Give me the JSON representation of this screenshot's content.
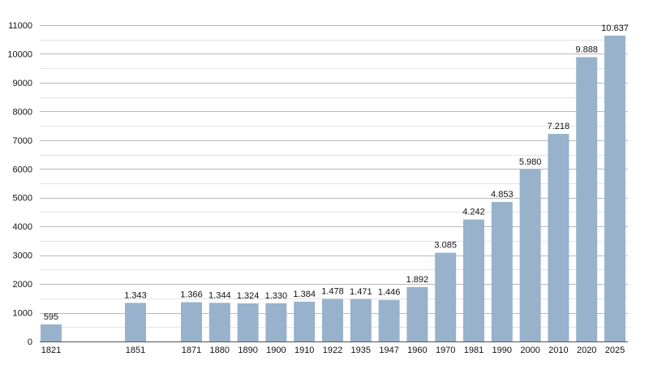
{
  "chart_data": {
    "type": "bar",
    "title": "",
    "xlabel": "",
    "ylabel": "",
    "ylim": [
      0,
      11000
    ],
    "yticks": [
      0,
      1000,
      2000,
      3000,
      4000,
      5000,
      6000,
      7000,
      8000,
      9000,
      10000,
      11000
    ],
    "grid": true,
    "legend": "none",
    "bar_color": "#98b2cc",
    "categories": [
      "1821",
      "1851",
      "1871",
      "1880",
      "1890",
      "1900",
      "1910",
      "1922",
      "1935",
      "1947",
      "1960",
      "1970",
      "1981",
      "1990",
      "2000",
      "2010",
      "2020",
      "2025"
    ],
    "values": [
      595,
      1343,
      1366,
      1344,
      1324,
      1330,
      1384,
      1478,
      1471,
      1446,
      1892,
      3085,
      4242,
      4853,
      5980,
      7218,
      9888,
      10637
    ],
    "value_labels": [
      "595",
      "1.343",
      "1.366",
      "1.344",
      "1.324",
      "1.330",
      "1.384",
      "1.478",
      "1.471",
      "1.446",
      "1.892",
      "3.085",
      "4.242",
      "4.853",
      "5.980",
      "7.218",
      "9.888",
      "10.637"
    ]
  }
}
